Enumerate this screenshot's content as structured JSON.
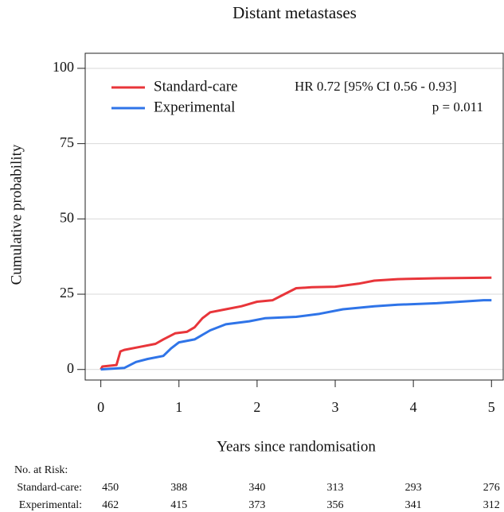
{
  "chart_data": {
    "type": "line",
    "title": "Distant metastases",
    "x_label": "Years since randomisation",
    "y_label": "Cumulative probability",
    "xlim": [
      -0.2,
      5.15
    ],
    "ylim": [
      -3.5,
      105
    ],
    "xticks": [
      0,
      1,
      2,
      3,
      4,
      5
    ],
    "yticks": [
      0,
      25,
      50,
      75,
      100
    ],
    "grid": true,
    "annotations": [
      "HR 0.72 [95% CI 0.56 - 0.93]",
      "p = 0.011"
    ],
    "series": [
      {
        "name": "Standard-care",
        "color": "#e8353a",
        "x": [
          0,
          0.02,
          0.2,
          0.25,
          0.3,
          0.5,
          0.7,
          0.8,
          0.95,
          1.1,
          1.2,
          1.3,
          1.4,
          1.6,
          1.8,
          2.0,
          2.2,
          2.35,
          2.5,
          2.7,
          3.0,
          3.3,
          3.5,
          3.8,
          4.3,
          5.0
        ],
        "values": [
          0,
          1,
          1.5,
          6,
          6.5,
          7.5,
          8.5,
          10,
          12,
          12.5,
          14,
          17,
          19,
          20,
          21,
          22.5,
          23,
          25,
          27,
          27.3,
          27.5,
          28.5,
          29.5,
          30,
          30.3,
          30.5
        ]
      },
      {
        "name": "Experimental",
        "color": "#2f74e8",
        "x": [
          0,
          0.3,
          0.45,
          0.6,
          0.8,
          0.9,
          1.0,
          1.2,
          1.4,
          1.6,
          1.9,
          2.1,
          2.5,
          2.8,
          3.1,
          3.5,
          3.8,
          4.3,
          4.6,
          4.9,
          5.0
        ],
        "values": [
          0,
          0.5,
          2.5,
          3.5,
          4.5,
          7,
          9,
          10,
          13,
          15,
          16,
          17,
          17.5,
          18.5,
          20,
          21,
          21.5,
          22,
          22.5,
          23,
          23
        ]
      }
    ],
    "risk_table": {
      "title": "No. at Risk:",
      "rows": [
        {
          "name": "Standard-care:",
          "values": [
            450,
            388,
            340,
            313,
            293,
            276
          ]
        },
        {
          "name": "Experimental:",
          "values": [
            462,
            415,
            373,
            356,
            341,
            312
          ]
        }
      ]
    }
  }
}
